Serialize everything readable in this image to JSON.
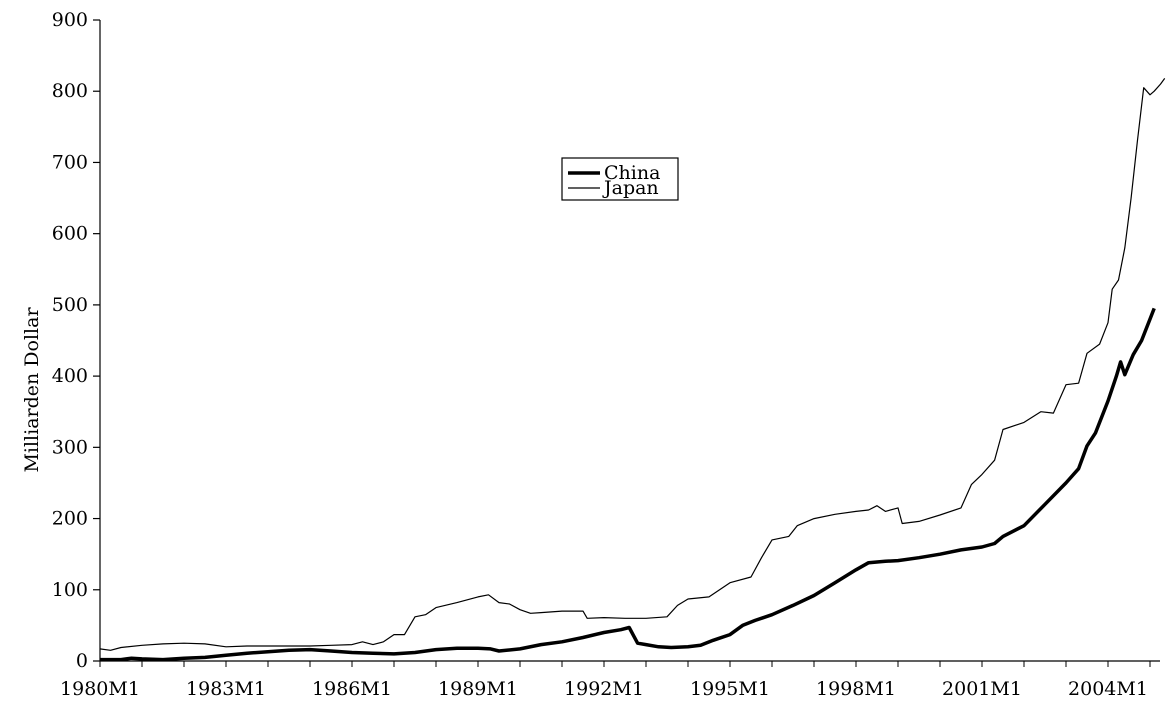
{
  "chart_data": {
    "type": "line",
    "title": "",
    "xlabel": "",
    "ylabel": "Milliarden Dollar",
    "ylim": [
      0,
      900
    ],
    "yticks": [
      0,
      100,
      200,
      300,
      400,
      500,
      600,
      700,
      800,
      900
    ],
    "xlim": [
      1980.0,
      2005.0
    ],
    "xtick_labels": [
      "1980M1",
      "1983M1",
      "1986M1",
      "1989M1",
      "1992M1",
      "1995M1",
      "1998M1",
      "2001M1",
      "2004M1"
    ],
    "xtick_years": [
      1980,
      1983,
      1986,
      1989,
      1992,
      1995,
      1998,
      2001,
      2004
    ],
    "grid": false,
    "legend_position": "center-top",
    "series": [
      {
        "name": "China",
        "color": "#000000",
        "style": "thick",
        "points": [
          [
            1980.0,
            2
          ],
          [
            1980.5,
            2
          ],
          [
            1980.75,
            4
          ],
          [
            1981.0,
            3
          ],
          [
            1981.5,
            2
          ],
          [
            1982.0,
            4
          ],
          [
            1982.5,
            5
          ],
          [
            1983.0,
            8
          ],
          [
            1983.5,
            11
          ],
          [
            1984.0,
            13
          ],
          [
            1984.5,
            15
          ],
          [
            1985.0,
            16
          ],
          [
            1985.5,
            14
          ],
          [
            1986.0,
            12
          ],
          [
            1986.5,
            11
          ],
          [
            1987.0,
            10
          ],
          [
            1987.5,
            12
          ],
          [
            1988.0,
            16
          ],
          [
            1988.5,
            18
          ],
          [
            1989.0,
            18
          ],
          [
            1989.3,
            17
          ],
          [
            1989.5,
            14
          ],
          [
            1990.0,
            17
          ],
          [
            1990.5,
            23
          ],
          [
            1991.0,
            27
          ],
          [
            1991.5,
            33
          ],
          [
            1992.0,
            40
          ],
          [
            1992.4,
            44
          ],
          [
            1992.6,
            47
          ],
          [
            1992.8,
            25
          ],
          [
            1993.0,
            23
          ],
          [
            1993.3,
            20
          ],
          [
            1993.6,
            19
          ],
          [
            1994.0,
            20
          ],
          [
            1994.3,
            22
          ],
          [
            1994.6,
            29
          ],
          [
            1995.0,
            37
          ],
          [
            1995.3,
            50
          ],
          [
            1995.6,
            57
          ],
          [
            1996.0,
            65
          ],
          [
            1996.5,
            78
          ],
          [
            1997.0,
            92
          ],
          [
            1997.5,
            110
          ],
          [
            1998.0,
            128
          ],
          [
            1998.3,
            138
          ],
          [
            1998.7,
            140
          ],
          [
            1999.0,
            141
          ],
          [
            1999.5,
            145
          ],
          [
            2000.0,
            150
          ],
          [
            2000.5,
            156
          ],
          [
            2001.0,
            160
          ],
          [
            2001.3,
            165
          ],
          [
            2001.5,
            175
          ],
          [
            2002.0,
            190
          ],
          [
            2002.5,
            220
          ],
          [
            2003.0,
            250
          ],
          [
            2003.3,
            270
          ],
          [
            2003.5,
            302
          ],
          [
            2003.7,
            320
          ],
          [
            2004.0,
            365
          ],
          [
            2004.2,
            400
          ],
          [
            2004.3,
            420
          ],
          [
            2004.4,
            402
          ],
          [
            2004.6,
            430
          ],
          [
            2004.8,
            450
          ],
          [
            2005.0,
            480
          ],
          [
            2005.1,
            495
          ]
        ]
      },
      {
        "name": "Japan",
        "color": "#000000",
        "style": "thin",
        "points": [
          [
            1980.0,
            17
          ],
          [
            1980.25,
            15
          ],
          [
            1980.5,
            19
          ],
          [
            1981.0,
            22
          ],
          [
            1981.5,
            24
          ],
          [
            1982.0,
            25
          ],
          [
            1982.5,
            24
          ],
          [
            1983.0,
            20
          ],
          [
            1983.5,
            21
          ],
          [
            1984.0,
            21
          ],
          [
            1984.5,
            21
          ],
          [
            1985.0,
            21
          ],
          [
            1985.5,
            22
          ],
          [
            1986.0,
            23
          ],
          [
            1986.25,
            27
          ],
          [
            1986.5,
            23
          ],
          [
            1986.75,
            27
          ],
          [
            1987.0,
            37
          ],
          [
            1987.25,
            37
          ],
          [
            1987.5,
            62
          ],
          [
            1987.75,
            65
          ],
          [
            1988.0,
            75
          ],
          [
            1988.5,
            82
          ],
          [
            1989.0,
            90
          ],
          [
            1989.25,
            93
          ],
          [
            1989.5,
            82
          ],
          [
            1989.75,
            80
          ],
          [
            1990.0,
            72
          ],
          [
            1990.25,
            67
          ],
          [
            1990.5,
            68
          ],
          [
            1991.0,
            70
          ],
          [
            1991.5,
            70
          ],
          [
            1991.6,
            60
          ],
          [
            1992.0,
            61
          ],
          [
            1992.5,
            60
          ],
          [
            1993.0,
            60
          ],
          [
            1993.5,
            62
          ],
          [
            1993.75,
            78
          ],
          [
            1994.0,
            87
          ],
          [
            1994.5,
            90
          ],
          [
            1995.0,
            110
          ],
          [
            1995.5,
            118
          ],
          [
            1995.75,
            145
          ],
          [
            1996.0,
            170
          ],
          [
            1996.4,
            175
          ],
          [
            1996.6,
            190
          ],
          [
            1997.0,
            200
          ],
          [
            1997.5,
            206
          ],
          [
            1998.0,
            210
          ],
          [
            1998.3,
            212
          ],
          [
            1998.5,
            218
          ],
          [
            1998.7,
            210
          ],
          [
            1999.0,
            215
          ],
          [
            1999.1,
            193
          ],
          [
            1999.5,
            196
          ],
          [
            2000.0,
            205
          ],
          [
            2000.5,
            215
          ],
          [
            2000.75,
            248
          ],
          [
            2001.0,
            262
          ],
          [
            2001.3,
            282
          ],
          [
            2001.5,
            325
          ],
          [
            2002.0,
            335
          ],
          [
            2002.4,
            350
          ],
          [
            2002.7,
            348
          ],
          [
            2003.0,
            388
          ],
          [
            2003.3,
            390
          ],
          [
            2003.5,
            432
          ],
          [
            2003.8,
            445
          ],
          [
            2004.0,
            475
          ],
          [
            2004.1,
            522
          ],
          [
            2004.25,
            535
          ],
          [
            2004.4,
            580
          ],
          [
            2004.55,
            650
          ],
          [
            2004.7,
            730
          ],
          [
            2004.85,
            805
          ],
          [
            2005.0,
            795
          ],
          [
            2005.1,
            800
          ],
          [
            2005.25,
            810
          ],
          [
            2005.35,
            818
          ]
        ]
      }
    ]
  }
}
